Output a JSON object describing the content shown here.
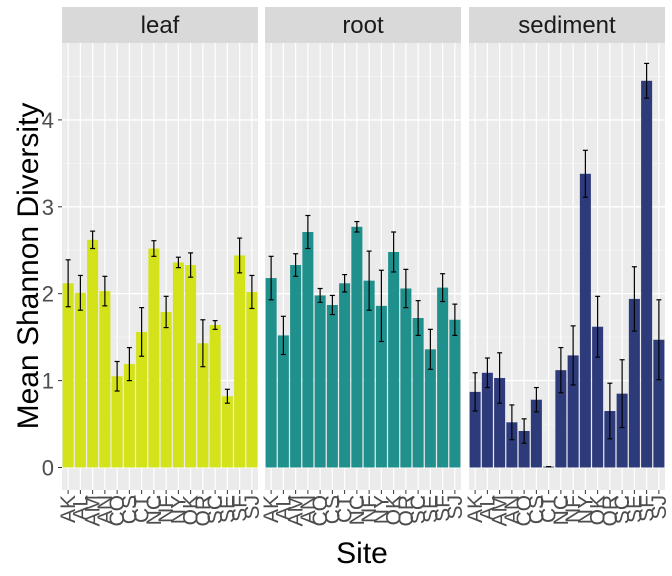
{
  "chart_data": {
    "type": "bar",
    "faceted": true,
    "xlabel": "Site",
    "ylabel": "Mean Shannon Diversity",
    "ylim": [
      0,
      4.95
    ],
    "yticks": [
      0,
      1,
      2,
      3,
      4
    ],
    "grid": true,
    "legend": "none",
    "categories": [
      "AK",
      "AL",
      "AM",
      "AN",
      "CO",
      "CS",
      "CT",
      "NC",
      "NF",
      "NY",
      "OK",
      "OR",
      "SC",
      "SE",
      "SF",
      "SJ"
    ],
    "panels": [
      {
        "name": "leaf",
        "color": "#d4e21a",
        "values": [
          2.12,
          2.01,
          2.62,
          2.03,
          1.05,
          1.19,
          1.56,
          2.52,
          1.79,
          2.36,
          2.33,
          1.43,
          1.64,
          0.82,
          2.44,
          2.02
        ],
        "errors": [
          0.27,
          0.2,
          0.1,
          0.17,
          0.17,
          0.19,
          0.28,
          0.09,
          0.18,
          0.06,
          0.14,
          0.27,
          0.05,
          0.08,
          0.2,
          0.19
        ]
      },
      {
        "name": "root",
        "color": "#20908d",
        "values": [
          2.18,
          1.52,
          2.33,
          2.71,
          1.98,
          1.87,
          2.12,
          2.77,
          2.15,
          1.86,
          2.48,
          2.06,
          1.72,
          1.36,
          2.07,
          1.7
        ],
        "errors": [
          0.25,
          0.22,
          0.13,
          0.19,
          0.08,
          0.11,
          0.1,
          0.06,
          0.34,
          0.41,
          0.23,
          0.22,
          0.2,
          0.23,
          0.16,
          0.18
        ]
      },
      {
        "name": "sediment",
        "color": "#2e3b7b",
        "values": [
          0.87,
          1.09,
          1.03,
          0.52,
          0.42,
          0.78,
          0.01,
          1.12,
          1.29,
          3.38,
          1.62,
          0.65,
          0.85,
          1.94,
          4.45,
          1.47
        ],
        "errors": [
          0.22,
          0.17,
          0.29,
          0.2,
          0.14,
          0.14,
          0.0,
          0.26,
          0.34,
          0.27,
          0.35,
          0.32,
          0.39,
          0.37,
          0.2,
          0.46
        ]
      }
    ]
  }
}
